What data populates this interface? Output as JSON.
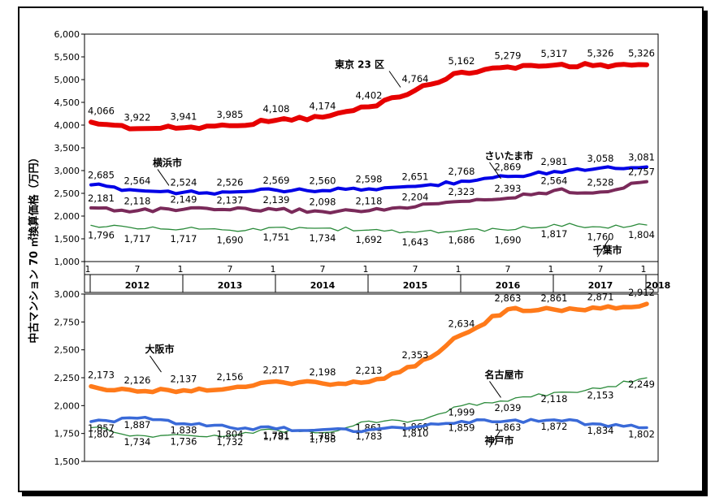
{
  "y_axis_title": "中古マンション 70 ㎡換算価格（万円）",
  "chart_data": [
    {
      "type": "line",
      "panel": "top",
      "ylim": [
        1000,
        6000
      ],
      "yticks": [
        "1,000",
        "1,500",
        "2,000",
        "2,500",
        "3,000",
        "3,500",
        "4,000",
        "4,500",
        "5,000",
        "5,500",
        "6,000"
      ],
      "ytick_values": [
        1000,
        1500,
        2000,
        2500,
        3000,
        3500,
        4000,
        4500,
        5000,
        5500,
        6000
      ],
      "x_start": "2012-01",
      "x_end": "2018-01",
      "x_month_ticks": [
        {
          "date": "2012-01",
          "label": "1"
        },
        {
          "date": "2012-07",
          "label": "7"
        },
        {
          "date": "2013-01",
          "label": "1"
        },
        {
          "date": "2013-07",
          "label": "7"
        },
        {
          "date": "2014-01",
          "label": "1"
        },
        {
          "date": "2014-07",
          "label": "7"
        },
        {
          "date": "2015-01",
          "label": "1"
        },
        {
          "date": "2015-07",
          "label": "7"
        },
        {
          "date": "2016-01",
          "label": "1"
        },
        {
          "date": "2016-07",
          "label": "7"
        },
        {
          "date": "2017-01",
          "label": "1"
        },
        {
          "date": "2017-07",
          "label": "7"
        },
        {
          "date": "2018-01",
          "label": "1"
        }
      ],
      "x_years": [
        "2012",
        "2013",
        "2014",
        "2015",
        "2016",
        "2017",
        "2018"
      ],
      "series": [
        {
          "name": "東京 23 区",
          "color": "#e60000",
          "points": [
            [
              "2012-01",
              4066
            ],
            [
              "2012-07",
              3922
            ],
            [
              "2013-01",
              3941
            ],
            [
              "2013-07",
              3985
            ],
            [
              "2014-01",
              4108
            ],
            [
              "2014-07",
              4174
            ],
            [
              "2015-01",
              4402
            ],
            [
              "2015-07",
              4764
            ],
            [
              "2016-01",
              5162
            ],
            [
              "2016-07",
              5279
            ],
            [
              "2017-01",
              5317
            ],
            [
              "2017-07",
              5326
            ],
            [
              "2018-01",
              5326
            ]
          ],
          "labels": [
            "4,066",
            "3,922",
            "3,941",
            "3,985",
            "4,108",
            "4,174",
            "4,402",
            "4,764",
            "5,162",
            "5,279",
            "5,317",
            "5,326",
            "5,326"
          ]
        },
        {
          "name": "横浜市",
          "color": "#0000e6",
          "points": [
            [
              "2012-01",
              2685
            ],
            [
              "2012-07",
              2564
            ],
            [
              "2013-01",
              2524
            ],
            [
              "2013-07",
              2526
            ],
            [
              "2014-01",
              2569
            ],
            [
              "2014-07",
              2560
            ],
            [
              "2015-01",
              2598
            ],
            [
              "2015-07",
              2651
            ],
            [
              "2016-01",
              2768
            ],
            [
              "2016-07",
              2869
            ],
            [
              "2017-01",
              2981
            ],
            [
              "2017-07",
              3058
            ],
            [
              "2018-01",
              3081
            ]
          ],
          "labels": [
            "2,685",
            "2,564",
            "2,524",
            "2,526",
            "2,569",
            "2,560",
            "2,598",
            "2,651",
            "2,768",
            "2,869",
            "2,981",
            "3,058",
            "3,081"
          ]
        },
        {
          "name": "さいたま市",
          "color": "#7a2a5a",
          "points": [
            [
              "2012-01",
              2181
            ],
            [
              "2012-07",
              2118
            ],
            [
              "2013-01",
              2149
            ],
            [
              "2013-07",
              2137
            ],
            [
              "2014-01",
              2139
            ],
            [
              "2014-07",
              2098
            ],
            [
              "2015-01",
              2118
            ],
            [
              "2015-07",
              2204
            ],
            [
              "2016-01",
              2323
            ],
            [
              "2016-07",
              2393
            ],
            [
              "2017-01",
              2564
            ],
            [
              "2017-07",
              2528
            ],
            [
              "2018-01",
              2757
            ]
          ],
          "labels": [
            "2,181",
            "2,118",
            "2,149",
            "2,137",
            "2,139",
            "2,098",
            "2,118",
            "2,204",
            "2,323",
            "2,393",
            "2,564",
            "2,528",
            "2,757"
          ]
        },
        {
          "name": "千葉市",
          "color": "#2a8a3a",
          "points": [
            [
              "2012-01",
              1796
            ],
            [
              "2012-07",
              1717
            ],
            [
              "2013-01",
              1717
            ],
            [
              "2013-07",
              1690
            ],
            [
              "2014-01",
              1751
            ],
            [
              "2014-07",
              1734
            ],
            [
              "2015-01",
              1692
            ],
            [
              "2015-07",
              1643
            ],
            [
              "2016-01",
              1686
            ],
            [
              "2016-07",
              1690
            ],
            [
              "2017-01",
              1817
            ],
            [
              "2017-07",
              1760
            ],
            [
              "2018-01",
              1804
            ]
          ],
          "labels": [
            "1,796",
            "1,717",
            "1,717",
            "1,690",
            "1,751",
            "1,734",
            "1,692",
            "1,643",
            "1,686",
            "1,690",
            "1,817",
            "1,760",
            "1,804"
          ]
        }
      ]
    },
    {
      "type": "line",
      "panel": "bottom",
      "ylim": [
        1500,
        3000
      ],
      "yticks": [
        "1,500",
        "1,750",
        "2,000",
        "2,250",
        "2,500",
        "2,750",
        "3,000"
      ],
      "ytick_values": [
        1500,
        1750,
        2000,
        2250,
        2500,
        2750,
        3000
      ],
      "x_start": "2012-01",
      "x_end": "2018-01",
      "series": [
        {
          "name": "大阪市",
          "color": "#ff7a1a",
          "points": [
            [
              "2012-01",
              2173
            ],
            [
              "2012-07",
              2126
            ],
            [
              "2013-01",
              2137
            ],
            [
              "2013-07",
              2156
            ],
            [
              "2014-01",
              2217
            ],
            [
              "2014-07",
              2198
            ],
            [
              "2015-01",
              2213
            ],
            [
              "2015-07",
              2353
            ],
            [
              "2016-01",
              2634
            ],
            [
              "2016-07",
              2863
            ],
            [
              "2017-01",
              2861
            ],
            [
              "2017-07",
              2871
            ],
            [
              "2018-01",
              2912
            ]
          ],
          "labels": [
            "2,173",
            "2,126",
            "2,137",
            "2,156",
            "2,217",
            "2,198",
            "2,213",
            "2,353",
            "2,634",
            "2,863",
            "2,861",
            "2,871",
            "2,912"
          ]
        },
        {
          "name": "名古屋市",
          "color": "#2a8a3a",
          "points": [
            [
              "2012-01",
              1802
            ],
            [
              "2012-07",
              1734
            ],
            [
              "2013-01",
              1736
            ],
            [
              "2013-07",
              1732
            ],
            [
              "2014-01",
              1781
            ],
            [
              "2014-07",
              1758
            ],
            [
              "2015-01",
              1861
            ],
            [
              "2015-07",
              1868
            ],
            [
              "2016-01",
              1999
            ],
            [
              "2016-07",
              2039
            ],
            [
              "2017-01",
              2118
            ],
            [
              "2017-07",
              2153
            ],
            [
              "2018-01",
              2249
            ]
          ],
          "labels": [
            "1,802",
            "1,734",
            "1,736",
            "1,732",
            "1,781",
            "1,758",
            "1,861",
            "1,868",
            "1,999",
            "2,039",
            "2,118",
            "2,153",
            "2,249"
          ]
        },
        {
          "name": "神戸市",
          "color": "#3a6ad8",
          "points": [
            [
              "2012-01",
              1857
            ],
            [
              "2012-07",
              1887
            ],
            [
              "2013-01",
              1838
            ],
            [
              "2013-07",
              1804
            ],
            [
              "2014-01",
              1791
            ],
            [
              "2014-07",
              1785
            ],
            [
              "2015-01",
              1783
            ],
            [
              "2015-07",
              1810
            ],
            [
              "2016-01",
              1859
            ],
            [
              "2016-07",
              1863
            ],
            [
              "2017-01",
              1872
            ],
            [
              "2017-07",
              1834
            ],
            [
              "2018-01",
              1802
            ]
          ],
          "labels": [
            "1,857",
            "1,887",
            "1,838",
            "1,804",
            "1,791",
            "1,785",
            "1,783",
            "1,810",
            "1,859",
            "1,863",
            "1,872",
            "1,834",
            "1,802"
          ]
        }
      ]
    }
  ]
}
